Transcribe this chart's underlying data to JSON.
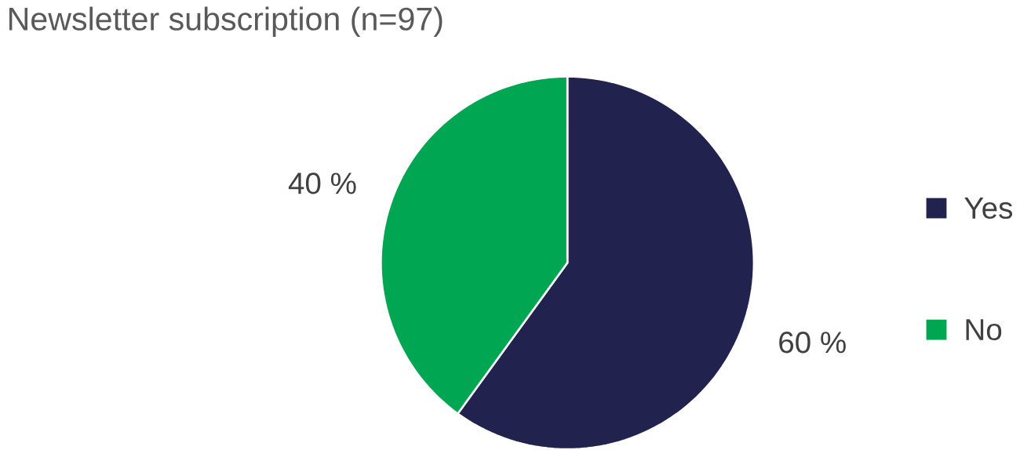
{
  "chart_data": {
    "type": "pie",
    "title": "Newsletter subscription (n=97)",
    "categories": [
      "Yes",
      "No"
    ],
    "values": [
      60,
      40
    ],
    "colors": [
      "#22224e",
      "#00a651"
    ],
    "value_labels": [
      "60 %",
      "40 %"
    ],
    "legend": "right"
  }
}
